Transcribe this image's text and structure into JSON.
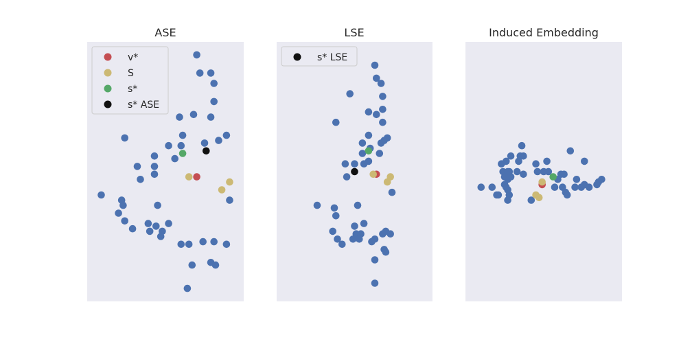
{
  "chart_data": [
    {
      "type": "scatter",
      "title": "ASE",
      "xlabel": "",
      "ylabel": "",
      "grid": false,
      "legend_placement": "upper-left",
      "legend": [
        {
          "label": "v*",
          "color": "#c44e52"
        },
        {
          "label": "S",
          "color": "#ccb974"
        },
        {
          "label": "s*",
          "color": "#55a868"
        },
        {
          "label": "s* ASE",
          "color": "#111111"
        }
      ],
      "xlim": [
        0,
        10
      ],
      "ylim": [
        0,
        10
      ],
      "series": [
        {
          "color": "#4c72b0",
          "points": [
            [
              7.0,
              9.5
            ],
            [
              7.2,
              8.8
            ],
            [
              7.9,
              8.8
            ],
            [
              8.1,
              8.4
            ],
            [
              8.1,
              7.7
            ],
            [
              7.9,
              7.1
            ],
            [
              6.8,
              7.2
            ],
            [
              5.9,
              7.1
            ],
            [
              6.1,
              6.4
            ],
            [
              8.9,
              6.4
            ],
            [
              8.4,
              6.2
            ],
            [
              7.5,
              6.1
            ],
            [
              2.4,
              6.3
            ],
            [
              5.2,
              6.0
            ],
            [
              6.0,
              6.0
            ],
            [
              4.3,
              5.6
            ],
            [
              5.6,
              5.5
            ],
            [
              4.3,
              5.2
            ],
            [
              3.2,
              5.2
            ],
            [
              4.3,
              4.9
            ],
            [
              3.4,
              4.7
            ],
            [
              9.1,
              3.9
            ],
            [
              0.9,
              4.1
            ],
            [
              2.2,
              3.9
            ],
            [
              2.3,
              3.7
            ],
            [
              4.5,
              3.7
            ],
            [
              2.0,
              3.4
            ],
            [
              2.4,
              3.1
            ],
            [
              3.9,
              3.0
            ],
            [
              4.4,
              2.9
            ],
            [
              5.2,
              3.0
            ],
            [
              2.9,
              2.8
            ],
            [
              4.0,
              2.7
            ],
            [
              4.8,
              2.7
            ],
            [
              4.7,
              2.5
            ],
            [
              6.0,
              2.2
            ],
            [
              6.5,
              2.2
            ],
            [
              7.4,
              2.3
            ],
            [
              8.1,
              2.3
            ],
            [
              8.9,
              2.2
            ],
            [
              6.7,
              1.4
            ],
            [
              7.9,
              1.5
            ],
            [
              8.2,
              1.4
            ],
            [
              6.4,
              0.5
            ]
          ]
        },
        {
          "name": "v*",
          "color": "#c44e52",
          "points": [
            [
              7.0,
              4.8
            ]
          ]
        },
        {
          "name": "S",
          "color": "#ccb974",
          "points": [
            [
              6.5,
              4.8
            ],
            [
              9.1,
              4.6
            ],
            [
              8.6,
              4.3
            ]
          ]
        },
        {
          "name": "s*",
          "color": "#55a868",
          "points": [
            [
              6.1,
              5.7
            ]
          ]
        },
        {
          "name": "s* ASE",
          "color": "#111111",
          "points": [
            [
              7.6,
              5.8
            ]
          ]
        }
      ]
    },
    {
      "type": "scatter",
      "title": "LSE",
      "xlabel": "",
      "ylabel": "",
      "grid": false,
      "legend_placement": "upper-left",
      "legend": [
        {
          "label": "s* LSE",
          "color": "#111111"
        }
      ],
      "xlim": [
        0,
        10
      ],
      "ylim": [
        0,
        10
      ],
      "series": [
        {
          "color": "#4c72b0",
          "points": [
            [
              6.3,
              9.1
            ],
            [
              6.4,
              8.6
            ],
            [
              6.7,
              8.4
            ],
            [
              4.7,
              8.0
            ],
            [
              6.8,
              7.9
            ],
            [
              6.8,
              7.4
            ],
            [
              5.9,
              7.3
            ],
            [
              6.4,
              7.2
            ],
            [
              3.8,
              6.9
            ],
            [
              6.8,
              6.9
            ],
            [
              5.9,
              6.4
            ],
            [
              7.1,
              6.3
            ],
            [
              6.9,
              6.2
            ],
            [
              5.5,
              6.1
            ],
            [
              6.7,
              6.1
            ],
            [
              6.0,
              5.9
            ],
            [
              6.6,
              5.7
            ],
            [
              5.5,
              5.7
            ],
            [
              5.9,
              5.4
            ],
            [
              4.4,
              5.3
            ],
            [
              5.0,
              5.3
            ],
            [
              5.6,
              5.3
            ],
            [
              4.5,
              4.8
            ],
            [
              7.4,
              4.2
            ],
            [
              2.6,
              3.7
            ],
            [
              3.7,
              3.6
            ],
            [
              5.2,
              3.7
            ],
            [
              3.8,
              3.3
            ],
            [
              5.0,
              2.9
            ],
            [
              5.6,
              3.0
            ],
            [
              3.6,
              2.7
            ],
            [
              5.1,
              2.6
            ],
            [
              5.4,
              2.6
            ],
            [
              7.0,
              2.7
            ],
            [
              7.3,
              2.6
            ],
            [
              6.8,
              2.6
            ],
            [
              3.9,
              2.4
            ],
            [
              4.9,
              2.4
            ],
            [
              5.3,
              2.4
            ],
            [
              6.1,
              2.3
            ],
            [
              6.3,
              2.4
            ],
            [
              4.2,
              2.2
            ],
            [
              6.9,
              2.0
            ],
            [
              7.0,
              1.9
            ],
            [
              6.3,
              1.6
            ],
            [
              6.3,
              0.7
            ]
          ]
        },
        {
          "name": "v*",
          "color": "#c44e52",
          "points": [
            [
              6.4,
              4.9
            ]
          ]
        },
        {
          "name": "S",
          "color": "#ccb974",
          "points": [
            [
              6.2,
              4.9
            ],
            [
              7.3,
              4.8
            ],
            [
              7.1,
              4.6
            ]
          ]
        },
        {
          "name": "s*",
          "color": "#55a868",
          "points": [
            [
              5.9,
              5.8
            ]
          ]
        },
        {
          "name": "s* LSE",
          "color": "#111111",
          "points": [
            [
              5.0,
              5.0
            ]
          ]
        }
      ]
    },
    {
      "type": "scatter",
      "title": "Induced Embedding",
      "xlabel": "",
      "ylabel": "",
      "grid": false,
      "legend_placement": "none",
      "legend": [],
      "xlim": [
        0,
        10
      ],
      "ylim": [
        0,
        10
      ],
      "series": [
        {
          "color": "#4c72b0",
          "points": [
            [
              3.6,
              6.0
            ],
            [
              6.7,
              5.8
            ],
            [
              2.9,
              5.6
            ],
            [
              3.5,
              5.6
            ],
            [
              3.7,
              5.6
            ],
            [
              2.6,
              5.4
            ],
            [
              3.4,
              5.4
            ],
            [
              7.6,
              5.4
            ],
            [
              4.5,
              5.3
            ],
            [
              5.2,
              5.4
            ],
            [
              2.3,
              5.3
            ],
            [
              4.6,
              5.0
            ],
            [
              5.0,
              5.0
            ],
            [
              5.3,
              5.0
            ],
            [
              2.4,
              5.0
            ],
            [
              2.7,
              5.0
            ],
            [
              2.8,
              5.0
            ],
            [
              3.3,
              5.0
            ],
            [
              6.1,
              4.9
            ],
            [
              2.5,
              4.8
            ],
            [
              2.9,
              4.8
            ],
            [
              3.7,
              4.9
            ],
            [
              6.3,
              4.9
            ],
            [
              7.1,
              4.7
            ],
            [
              5.9,
              4.7
            ],
            [
              2.7,
              4.7
            ],
            [
              8.7,
              4.7
            ],
            [
              7.6,
              4.5
            ],
            [
              8.5,
              4.6
            ],
            [
              2.5,
              4.5
            ],
            [
              2.6,
              4.4
            ],
            [
              5.7,
              4.4
            ],
            [
              6.2,
              4.4
            ],
            [
              7.0,
              4.4
            ],
            [
              7.4,
              4.4
            ],
            [
              7.9,
              4.4
            ],
            [
              8.4,
              4.5
            ],
            [
              1.0,
              4.4
            ],
            [
              1.7,
              4.4
            ],
            [
              2.7,
              4.3
            ],
            [
              2.0,
              4.1
            ],
            [
              2.1,
              4.1
            ],
            [
              6.4,
              4.2
            ],
            [
              6.5,
              4.1
            ],
            [
              2.8,
              4.1
            ],
            [
              2.7,
              3.9
            ],
            [
              4.2,
              3.9
            ]
          ]
        },
        {
          "name": "v*",
          "color": "#c44e52",
          "points": [
            [
              4.9,
              4.5
            ]
          ]
        },
        {
          "name": "S",
          "color": "#ccb974",
          "points": [
            [
              4.9,
              4.6
            ],
            [
              4.5,
              4.1
            ],
            [
              4.7,
              4.0
            ]
          ]
        },
        {
          "name": "s*",
          "color": "#55a868",
          "points": [
            [
              5.6,
              4.8
            ]
          ]
        }
      ]
    }
  ]
}
